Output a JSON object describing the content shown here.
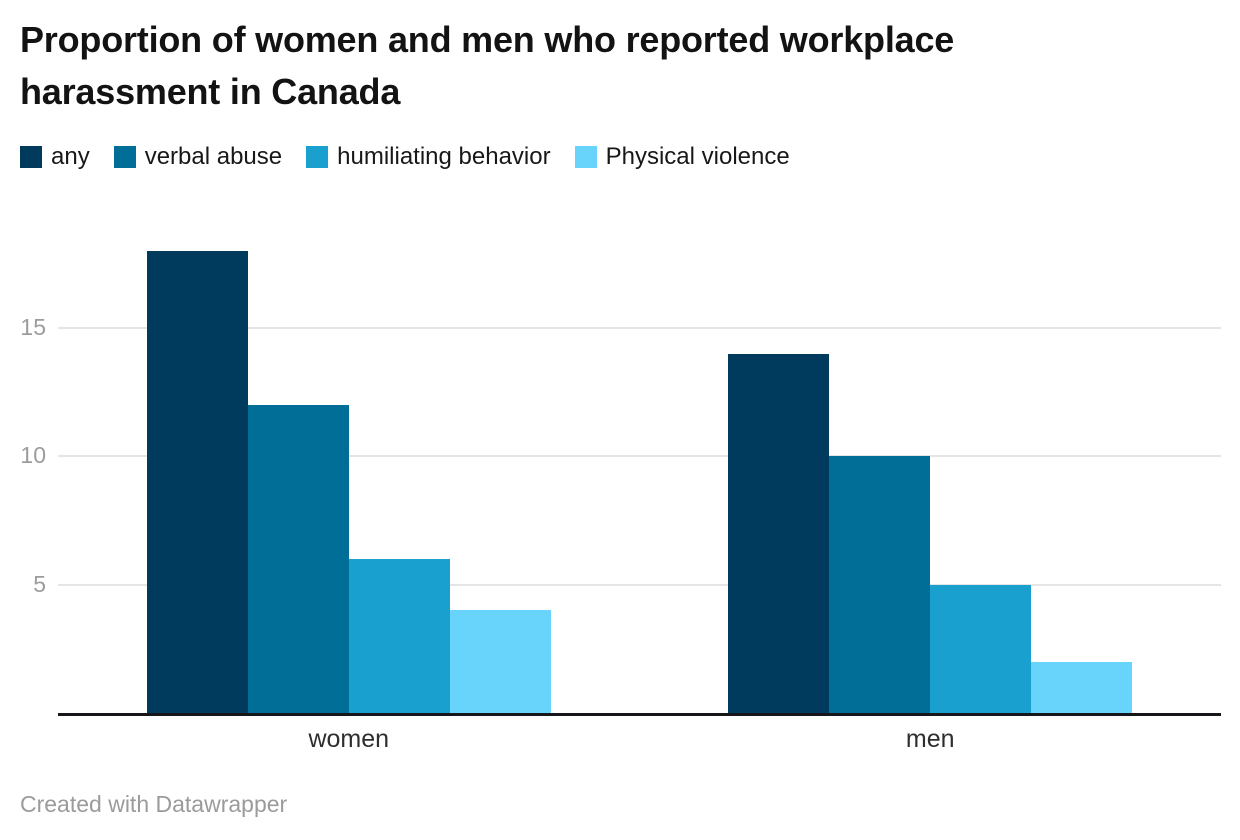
{
  "chart": {
    "title": "Proportion of women and men who reported workplace harassment in Canada",
    "footer": "Created with Datawrapper"
  },
  "chart_data": {
    "type": "bar",
    "title": "Proportion of women and men who reported workplace harassment in Canada",
    "categories": [
      "women",
      "men"
    ],
    "series": [
      {
        "name": "any",
        "color": "#003b5d",
        "values": [
          18,
          14
        ]
      },
      {
        "name": "verbal abuse",
        "color": "#006e97",
        "values": [
          12,
          10
        ]
      },
      {
        "name": "humiliating behavior",
        "color": "#1aa0ce",
        "values": [
          6,
          5
        ]
      },
      {
        "name": "Physical violence",
        "color": "#68d4fb",
        "values": [
          4,
          2
        ]
      }
    ],
    "xlabel": "",
    "ylabel": "",
    "yticks": [
      5,
      10,
      15
    ],
    "ylim": [
      0,
      19.2
    ],
    "grid": true,
    "legend_position": "top",
    "attribution": "Created with Datawrapper"
  },
  "style": {
    "grid_color": "#e5e5e5",
    "axis_color": "#17171b",
    "tick_label_color": "#9c9c9c",
    "category_label_color": "#2e2e2e",
    "footer_color": "#9b9b9b",
    "title_color": "#131313",
    "background": "#ffffff"
  }
}
